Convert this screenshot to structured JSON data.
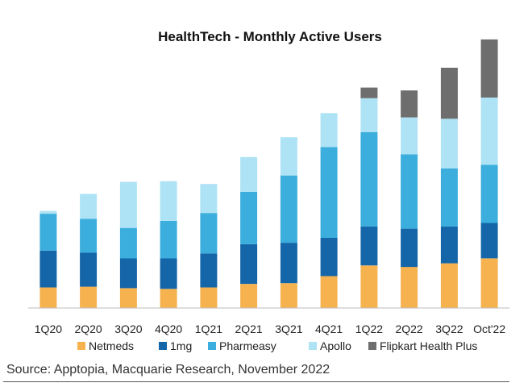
{
  "chart_data": {
    "type": "bar",
    "stacked": true,
    "title": "HealthTech - Monthly Active Users",
    "xlabel": "",
    "ylabel": "",
    "categories": [
      "1Q20",
      "2Q20",
      "3Q20",
      "4Q20",
      "1Q21",
      "2Q21",
      "3Q21",
      "4Q21",
      "1Q22",
      "2Q22",
      "3Q22",
      "Oct'22"
    ],
    "series": [
      {
        "name": "Netmeds",
        "color": "#F5B24F",
        "values": [
          29,
          30,
          28,
          27,
          29,
          34,
          35,
          45,
          60,
          58,
          63,
          70
        ]
      },
      {
        "name": "1mg",
        "color": "#1566A8",
        "values": [
          52,
          48,
          42,
          43,
          48,
          56,
          57,
          54,
          55,
          54,
          52,
          50
        ]
      },
      {
        "name": "Pharmeasy",
        "color": "#3BAEDD",
        "values": [
          52,
          48,
          43,
          53,
          57,
          74,
          95,
          128,
          133,
          105,
          82,
          82
        ]
      },
      {
        "name": "Apollo",
        "color": "#AEE3F5",
        "values": [
          4,
          35,
          65,
          56,
          41,
          49,
          54,
          48,
          48,
          52,
          70,
          95
        ]
      },
      {
        "name": "Flipkart Health Plus",
        "color": "#6E6E6E",
        "values": [
          0,
          0,
          0,
          0,
          0,
          0,
          0,
          0,
          15,
          38,
          72,
          82
        ]
      }
    ],
    "ylim": [
      0,
      380
    ],
    "grid": false,
    "legend_position": "bottom"
  },
  "source_text": "Source: Apptopia, Macquarie Research, November 2022"
}
